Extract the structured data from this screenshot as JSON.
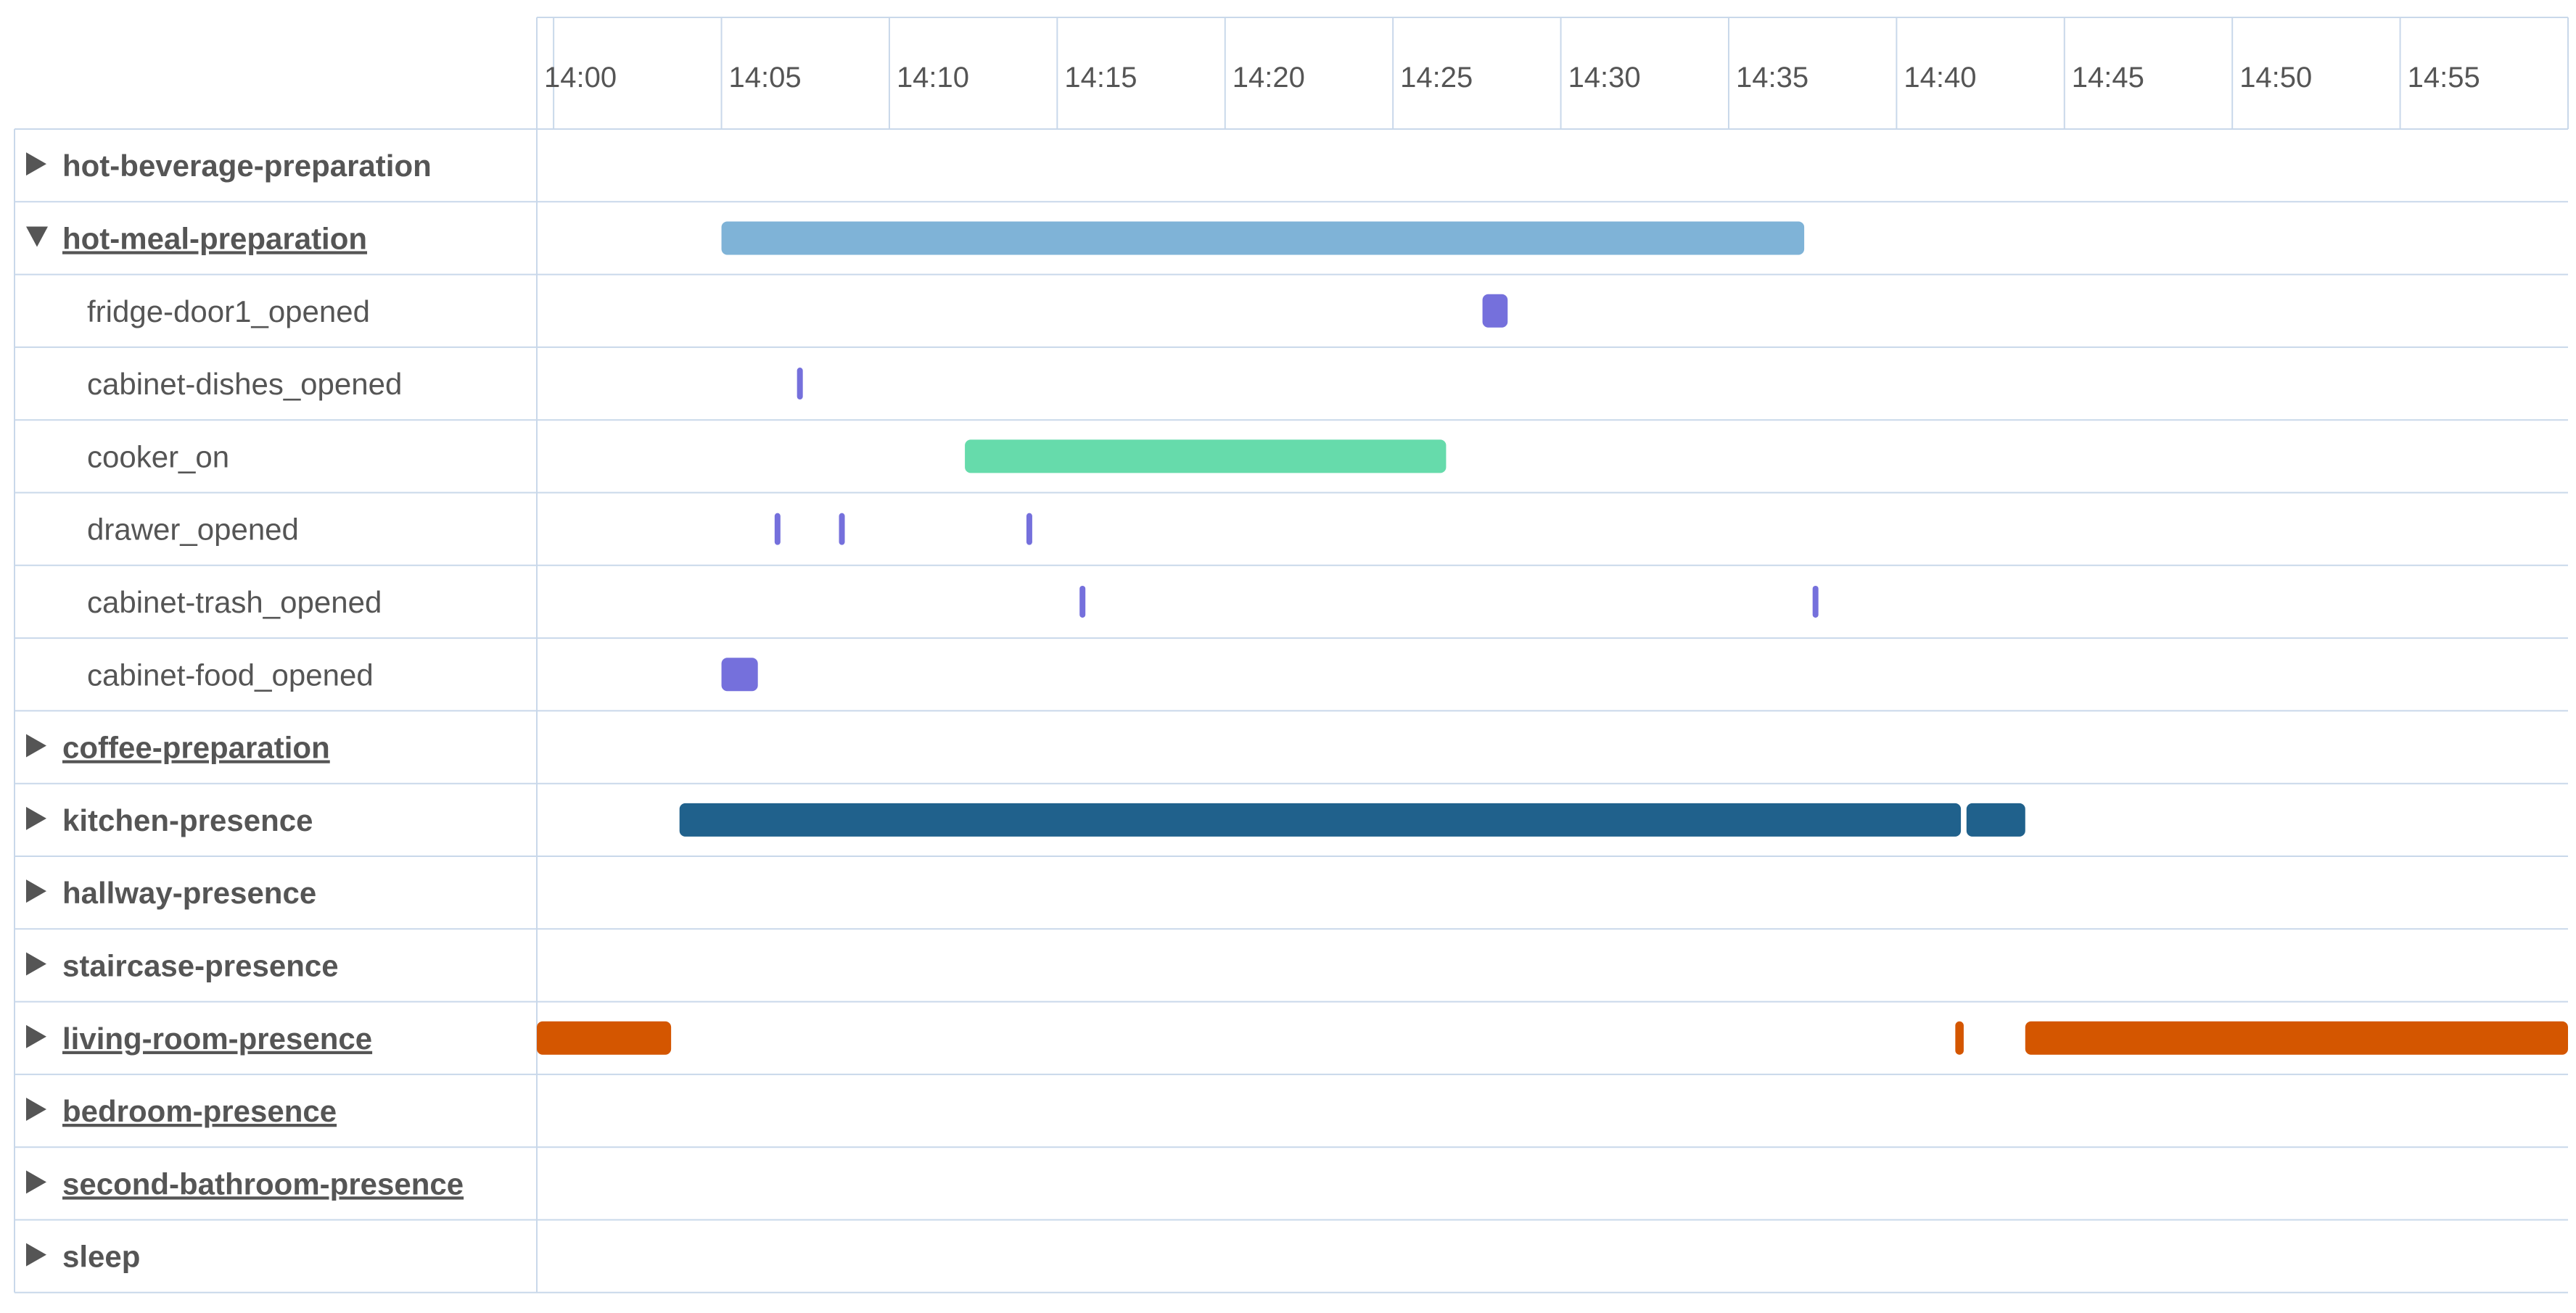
{
  "chart_data": {
    "type": "timeline",
    "x_axis": {
      "ticks": [
        "14:00",
        "14:05",
        "14:10",
        "14:15",
        "14:20",
        "14:25",
        "14:30",
        "14:35",
        "14:40",
        "14:45",
        "14:50",
        "14:55"
      ],
      "range": [
        "13:59:30",
        "15:00:00"
      ],
      "grid": true
    },
    "rows": [
      {
        "label": "hot-beverage-preparation",
        "kind": "group",
        "expanded": false,
        "underlined": false,
        "bars": []
      },
      {
        "label": "hot-meal-preparation",
        "kind": "group",
        "expanded": true,
        "underlined": true,
        "bars": [
          {
            "start": "14:05:00",
            "end": "14:37:15",
            "color": "#7fb3d7"
          }
        ]
      },
      {
        "label": "fridge-door1_opened",
        "kind": "sub",
        "bars": [
          {
            "start": "14:27:40",
            "end": "14:28:25",
            "color": "#7570dc"
          }
        ]
      },
      {
        "label": "cabinet-dishes_opened",
        "kind": "sub",
        "bars": [
          {
            "start": "14:07:15",
            "end": "14:07:25",
            "color": "#7570dc"
          }
        ]
      },
      {
        "label": "cooker_on",
        "kind": "sub",
        "bars": [
          {
            "start": "14:12:15",
            "end": "14:26:35",
            "color": "#66dbab"
          }
        ]
      },
      {
        "label": "drawer_opened",
        "kind": "sub",
        "bars": [
          {
            "start": "14:06:35",
            "end": "14:06:45",
            "color": "#7570dc"
          },
          {
            "start": "14:08:30",
            "end": "14:08:40",
            "color": "#7570dc"
          },
          {
            "start": "14:14:05",
            "end": "14:14:15",
            "color": "#7570dc"
          }
        ]
      },
      {
        "label": "cabinet-trash_opened",
        "kind": "sub",
        "bars": [
          {
            "start": "14:15:40",
            "end": "14:15:50",
            "color": "#7570dc"
          },
          {
            "start": "14:37:30",
            "end": "14:37:40",
            "color": "#7570dc"
          }
        ]
      },
      {
        "label": "cabinet-food_opened",
        "kind": "sub",
        "bars": [
          {
            "start": "14:05:00",
            "end": "14:06:05",
            "color": "#7570dc"
          }
        ]
      },
      {
        "label": "coffee-preparation",
        "kind": "group",
        "expanded": false,
        "underlined": true,
        "bars": []
      },
      {
        "label": "kitchen-presence",
        "kind": "group",
        "expanded": false,
        "underlined": false,
        "bars": [
          {
            "start": "14:03:45",
            "end": "14:41:55",
            "color": "#20618c"
          },
          {
            "start": "14:42:05",
            "end": "14:43:50",
            "color": "#20618c"
          }
        ]
      },
      {
        "label": "hallway-presence",
        "kind": "group",
        "expanded": false,
        "underlined": false,
        "bars": []
      },
      {
        "label": "staircase-presence",
        "kind": "group",
        "expanded": false,
        "underlined": false,
        "bars": []
      },
      {
        "label": "living-room-presence",
        "kind": "group",
        "expanded": false,
        "underlined": true,
        "bars": [
          {
            "start": "13:59:30",
            "end": "14:03:30",
            "color": "#d45600"
          },
          {
            "start": "14:41:45",
            "end": "14:42:00",
            "color": "#d45600"
          },
          {
            "start": "14:43:50",
            "end": "15:00:00",
            "color": "#d45600"
          }
        ]
      },
      {
        "label": "bedroom-presence",
        "kind": "group",
        "expanded": false,
        "underlined": true,
        "bars": []
      },
      {
        "label": "second-bathroom-presence",
        "kind": "group",
        "expanded": false,
        "underlined": true,
        "bars": []
      },
      {
        "label": "sleep",
        "kind": "group",
        "expanded": false,
        "underlined": false,
        "bars": []
      }
    ]
  },
  "colors": {
    "grid": "#c9d8ea",
    "text": "#555555"
  }
}
